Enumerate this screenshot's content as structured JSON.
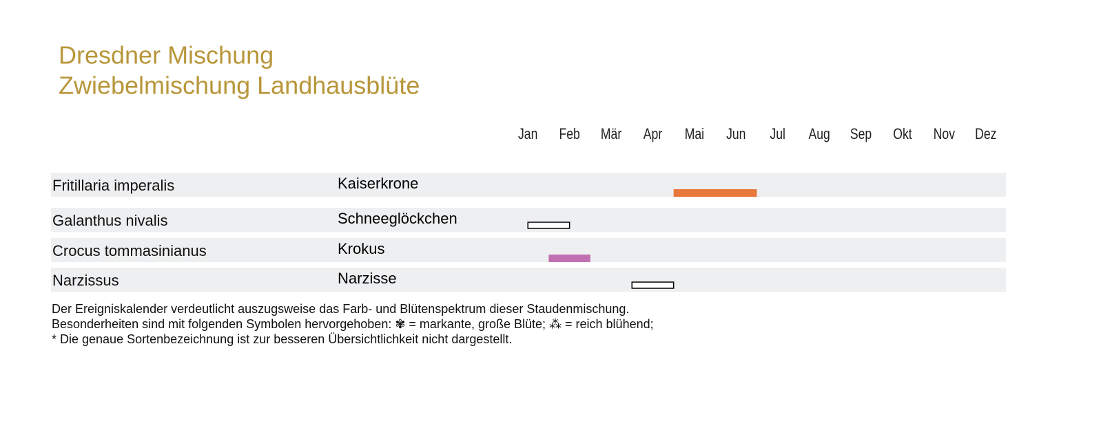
{
  "chart_data": {
    "type": "gantt",
    "title": [
      "Dresdner Mischung",
      "Zwiebelmischung Landhausblüte"
    ],
    "categories": [
      "Jan",
      "Feb",
      "Mär",
      "Apr",
      "Mai",
      "Jun",
      "Jul",
      "Aug",
      "Sep",
      "Okt",
      "Nov",
      "Dez"
    ],
    "xlim": [
      0,
      12
    ],
    "rows": [
      {
        "latin": "Fritillaria imperalis",
        "name": "Kaiserkrone",
        "start": 4,
        "end": 6,
        "color": "#e8793a",
        "outlined": false
      },
      {
        "latin": "Galanthus nivalis",
        "name": "Schneeglöckchen",
        "start": 0.5,
        "end": 1.5,
        "color": "#000000",
        "outlined": true
      },
      {
        "latin": "Crocus tommasinianus",
        "name": "Krokus",
        "start": 1,
        "end": 2,
        "color": "#c070b0",
        "outlined": false
      },
      {
        "latin": "Narzissus",
        "name": "Narzisse",
        "start": 3,
        "end": 4,
        "color": "#000000",
        "outlined": true
      }
    ],
    "notes": [
      "Der Ereigniskalender verdeutlicht auszugsweise das Farb- und Blütenspektrum dieser Staudenmischung.",
      "Besonderheiten sind mit folgenden Symbolen hervorgehoben: ✾ = markante, große Blüte; ⁂ = reich blühend;",
      "* Die genaue Sortenbezeichnung ist zur besseren Übersichtlichkeit nicht dargestellt."
    ]
  }
}
